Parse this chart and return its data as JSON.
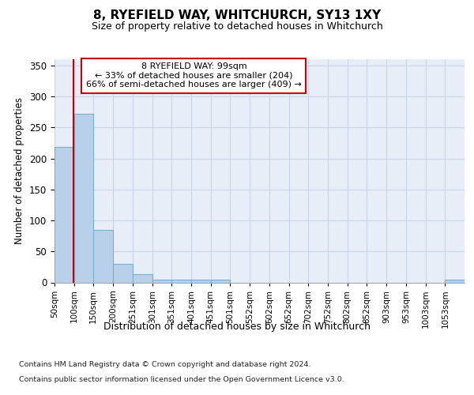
{
  "title": "8, RYEFIELD WAY, WHITCHURCH, SY13 1XY",
  "subtitle": "Size of property relative to detached houses in Whitchurch",
  "xlabel": "Distribution of detached houses by size in Whitchurch",
  "ylabel": "Number of detached properties",
  "bar_color": "#b8d0ea",
  "bar_edge_color": "#7aadd4",
  "annotation_line_color": "#cc0000",
  "background_color": "#e8eef8",
  "grid_color": "#c8d4e8",
  "bin_labels": [
    "50sqm",
    "100sqm",
    "150sqm",
    "200sqm",
    "251sqm",
    "301sqm",
    "351sqm",
    "401sqm",
    "451sqm",
    "501sqm",
    "552sqm",
    "602sqm",
    "652sqm",
    "702sqm",
    "752sqm",
    "802sqm",
    "852sqm",
    "903sqm",
    "953sqm",
    "1003sqm",
    "1053sqm"
  ],
  "bar_heights": [
    218,
    272,
    85,
    30,
    13,
    5,
    4,
    4,
    5,
    0,
    0,
    0,
    0,
    0,
    0,
    0,
    0,
    0,
    0,
    0,
    4
  ],
  "ylim": [
    0,
    360
  ],
  "yticks": [
    0,
    50,
    100,
    150,
    200,
    250,
    300,
    350
  ],
  "property_label": "8 RYEFIELD WAY: 99sqm",
  "annotation_line1": "← 33% of detached houses are smaller (204)",
  "annotation_line2": "66% of semi-detached houses are larger (409) →",
  "footnote1": "Contains HM Land Registry data © Crown copyright and database right 2024.",
  "footnote2": "Contains public sector information licensed under the Open Government Licence v3.0.",
  "red_line_x": 99,
  "bin_edges": [
    50,
    100,
    150,
    200,
    251,
    301,
    351,
    401,
    451,
    501,
    552,
    602,
    652,
    702,
    752,
    802,
    852,
    903,
    953,
    1003,
    1053,
    1103
  ]
}
